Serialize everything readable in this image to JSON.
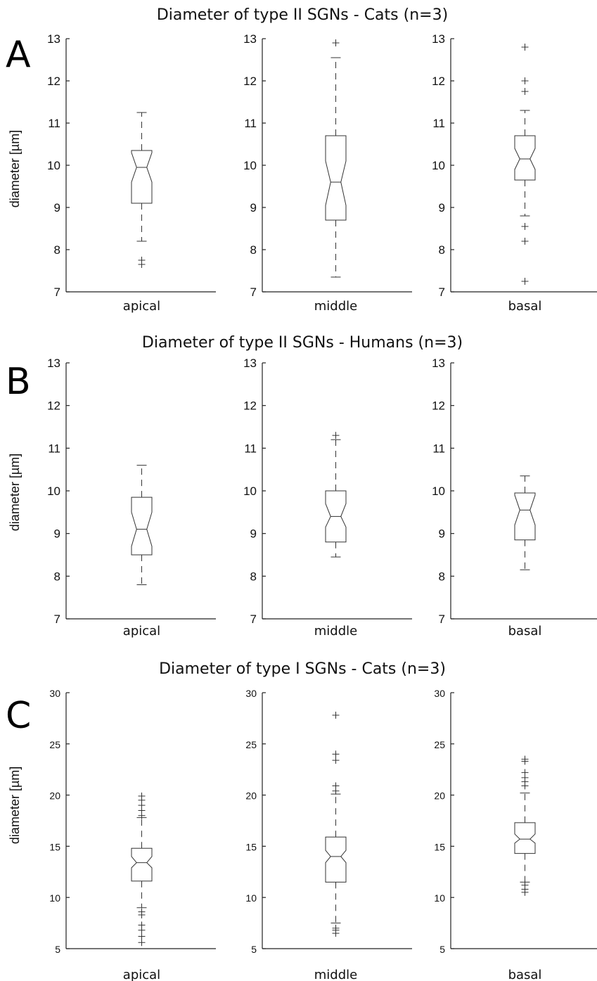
{
  "chart_data": [
    {
      "type": "box",
      "panel_letter": "A",
      "title": "Diameter of type II SGNs - Cats (n=3)",
      "ylabel": "diameter [µm]",
      "ylim": [
        7,
        13
      ],
      "yticks": [
        7,
        8,
        9,
        10,
        11,
        12,
        13
      ],
      "subplots": [
        {
          "category": "apical",
          "q1": 9.1,
          "median": 9.95,
          "q3": 10.35,
          "notch_low": 9.6,
          "notch_high": 10.3,
          "whisker_low": 8.2,
          "whisker_high": 11.25,
          "outliers": [
            7.65,
            7.75
          ]
        },
        {
          "category": "middle",
          "q1": 8.7,
          "median": 9.6,
          "q3": 10.7,
          "notch_low": 9.05,
          "notch_high": 10.1,
          "whisker_low": 7.35,
          "whisker_high": 12.55,
          "outliers": [
            12.9
          ]
        },
        {
          "category": "basal",
          "q1": 9.65,
          "median": 10.15,
          "q3": 10.7,
          "notch_low": 9.9,
          "notch_high": 10.4,
          "whisker_low": 8.8,
          "whisker_high": 11.3,
          "outliers": [
            7.25,
            8.2,
            8.55,
            11.75,
            12.0,
            12.8
          ]
        }
      ]
    },
    {
      "type": "box",
      "panel_letter": "B",
      "title": "Diameter of type II SGNs - Humans (n=3)",
      "ylabel": "diameter [µm]",
      "ylim": [
        7,
        13
      ],
      "yticks": [
        7,
        8,
        9,
        10,
        11,
        12,
        13
      ],
      "subplots": [
        {
          "category": "apical",
          "q1": 8.5,
          "median": 9.1,
          "q3": 9.85,
          "notch_low": 8.7,
          "notch_high": 9.5,
          "whisker_low": 7.8,
          "whisker_high": 10.6,
          "outliers": []
        },
        {
          "category": "middle",
          "q1": 8.8,
          "median": 9.4,
          "q3": 10.0,
          "notch_low": 9.15,
          "notch_high": 9.7,
          "whisker_low": 8.45,
          "whisker_high": 11.2,
          "outliers": [
            11.3
          ]
        },
        {
          "category": "basal",
          "q1": 8.85,
          "median": 9.55,
          "q3": 9.95,
          "notch_low": 9.2,
          "notch_high": 9.9,
          "whisker_low": 8.15,
          "whisker_high": 10.35,
          "outliers": []
        }
      ]
    },
    {
      "type": "box",
      "panel_letter": "C",
      "title": "Diameter of type I SGNs - Cats (n=3)",
      "ylabel": "diameter [µm]",
      "ylim": [
        5,
        30
      ],
      "yticks": [
        5,
        10,
        15,
        20,
        25,
        30
      ],
      "subplots": [
        {
          "category": "apical",
          "q1": 11.6,
          "median": 13.4,
          "q3": 14.8,
          "notch_low": 12.9,
          "notch_high": 14.0,
          "whisker_low": 9.0,
          "whisker_high": 17.8,
          "outliers": [
            5.6,
            6.2,
            6.8,
            7.3,
            8.3,
            8.6,
            18.0,
            18.5,
            19.0,
            19.5,
            19.9
          ]
        },
        {
          "category": "middle",
          "q1": 11.5,
          "median": 14.0,
          "q3": 15.9,
          "notch_low": 13.4,
          "notch_high": 14.6,
          "whisker_low": 7.5,
          "whisker_high": 20.1,
          "outliers": [
            6.5,
            6.8,
            7.0,
            20.4,
            20.9,
            23.4,
            24.0,
            27.8
          ]
        },
        {
          "category": "basal",
          "q1": 14.3,
          "median": 15.7,
          "q3": 17.3,
          "notch_low": 15.3,
          "notch_high": 16.2,
          "whisker_low": 11.5,
          "whisker_high": 20.2,
          "outliers": [
            10.5,
            10.8,
            11.2,
            20.9,
            21.3,
            21.7,
            22.2,
            23.3,
            23.5
          ]
        }
      ]
    }
  ]
}
